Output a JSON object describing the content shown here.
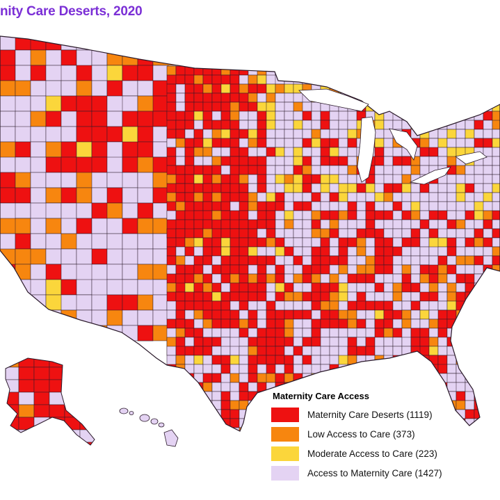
{
  "title": "nity Care Deserts, 2020",
  "legend": {
    "title": "Maternity Care Access",
    "items": [
      {
        "label": "Maternity Care Deserts (1119)",
        "color": "#ee1111"
      },
      {
        "label": "Low Access to Care (373)",
        "color": "#f7860f"
      },
      {
        "label": "Moderate Access to Care (223)",
        "color": "#fbd63b"
      },
      {
        "label": "Access to Maternity Care (1427)",
        "color": "#e4d3f3"
      }
    ]
  },
  "colors": {
    "border": "#2a1a2a",
    "background": "#ffffff",
    "title": "#7b2fd6"
  }
}
